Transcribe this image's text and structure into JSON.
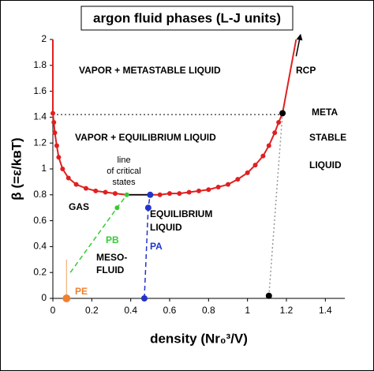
{
  "chart_data": {
    "type": "phase-diagram",
    "title": "argon fluid phases (L-J units)",
    "x_label": "density (Nr₀³/V)",
    "y_label": "β (=ε/kʙT)",
    "xlim": [
      0,
      1.5
    ],
    "ylim": [
      0,
      2
    ],
    "xticks": [
      0,
      0.2,
      0.4,
      0.6,
      0.8,
      1,
      1.2,
      1.4
    ],
    "yticks": [
      0,
      0.2,
      0.4,
      0.6,
      0.8,
      1,
      1.2,
      1.4,
      1.6,
      1.8,
      2
    ],
    "lines": [
      {
        "color": "#e02020",
        "dash": "solid",
        "width": 2,
        "x": [
          0,
          0,
          0.005,
          0.01,
          0.02,
          0.03,
          0.05,
          0.08,
          0.12,
          0.17,
          0.22,
          0.27,
          0.32,
          0.38,
          0.5,
          0.55,
          0.6,
          0.65,
          0.7,
          0.75,
          0.8,
          0.85,
          0.9,
          0.95,
          1.0,
          1.04,
          1.08,
          1.11,
          1.14,
          1.16,
          1.18,
          1.25
        ],
        "y": [
          2,
          1.43,
          1.36,
          1.28,
          1.18,
          1.09,
          1.0,
          0.93,
          0.88,
          0.85,
          0.83,
          0.82,
          0.81,
          0.8,
          0.8,
          0.8,
          0.81,
          0.81,
          0.82,
          0.83,
          0.84,
          0.86,
          0.88,
          0.92,
          0.97,
          1.03,
          1.1,
          1.18,
          1.28,
          1.36,
          1.43,
          2
        ]
      },
      {
        "color": "#000000",
        "dash": "dotted",
        "width": 1,
        "x": [
          0,
          1.18
        ],
        "y": [
          1.42,
          1.42
        ]
      },
      {
        "color": "#000000",
        "dash": "solid",
        "width": 1.5,
        "x": [
          0.38,
          0.5
        ],
        "y": [
          0.8,
          0.8
        ]
      },
      {
        "color": "#33cc33",
        "dash": "dashed",
        "width": 1.5,
        "x": [
          0.09,
          0.33,
          0.38
        ],
        "y": [
          0.2,
          0.7,
          0.8
        ]
      },
      {
        "color": "#2233cc",
        "dash": "dashed",
        "width": 1.5,
        "x": [
          0.47,
          0.49,
          0.5
        ],
        "y": [
          0,
          0.7,
          0.8
        ]
      },
      {
        "color": "#999999",
        "dash": "dotted",
        "width": 1.5,
        "x": [
          1.11,
          1.18
        ],
        "y": [
          0.02,
          1.43
        ]
      },
      {
        "color": "#f0a060",
        "dash": "solid",
        "width": 1,
        "x": [
          0.07,
          0.07
        ],
        "y": [
          0,
          0.3
        ]
      },
      {
        "color": "#000000",
        "dash": "arrow",
        "width": 1.5,
        "x": [
          1.25,
          1.27
        ],
        "y": [
          1.87,
          2.02
        ]
      }
    ],
    "points": [
      {
        "color": "#e02020",
        "size": 3,
        "x": [
          0,
          0.005,
          0.01,
          0.02,
          0.03,
          0.05,
          0.08,
          0.12,
          0.17,
          0.22,
          0.27,
          0.32,
          0.55,
          0.6,
          0.65,
          0.7,
          0.75,
          0.8,
          0.85,
          0.9,
          0.95,
          1.0,
          1.04,
          1.08,
          1.11,
          1.14,
          1.16
        ],
        "y": [
          1.43,
          1.36,
          1.28,
          1.18,
          1.09,
          1.0,
          0.93,
          0.88,
          0.85,
          0.83,
          0.82,
          0.81,
          0.8,
          0.81,
          0.81,
          0.82,
          0.83,
          0.84,
          0.86,
          0.88,
          0.92,
          0.97,
          1.03,
          1.1,
          1.18,
          1.28,
          1.36
        ]
      },
      {
        "color": "#33cc33",
        "size": 3,
        "x": [
          0.33,
          0.38
        ],
        "y": [
          0.7,
          0.8
        ]
      },
      {
        "color": "#2233cc",
        "size": 4,
        "x": [
          0.47,
          0.49,
          0.5
        ],
        "y": [
          0,
          0.7,
          0.8
        ]
      },
      {
        "color": "#000000",
        "size": 4,
        "x": [
          1.11,
          1.18
        ],
        "y": [
          0.02,
          1.43
        ]
      },
      {
        "color": "#f08030",
        "size": 5,
        "x": [
          0.07
        ],
        "y": [
          0
        ]
      }
    ],
    "annotations": [
      "VAPOR + METASTABLE LIQUID",
      "RCP",
      "META",
      "STABLE",
      "LIQUID",
      "VAPOR + EQUILIBRIUM LIQUID",
      "line",
      "of critical",
      "states",
      "GAS",
      "EQUILIBRIUM",
      "LIQUID",
      "PB",
      "MESO-",
      "FLUID",
      "PA",
      "PE"
    ]
  }
}
